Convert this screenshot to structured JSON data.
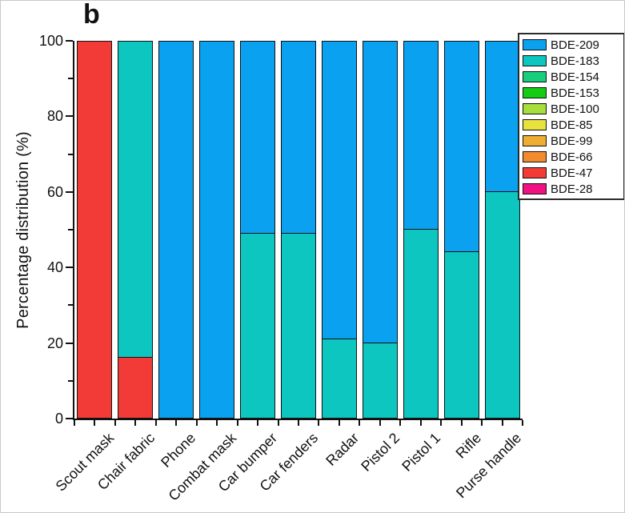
{
  "figure": {
    "panel_label": "b"
  },
  "chart_data": {
    "type": "bar",
    "stacked": true,
    "title": "b",
    "xlabel": "",
    "ylabel": "Percentage distribution (%)",
    "ylim": [
      0,
      100
    ],
    "yticks_major": [
      0,
      20,
      40,
      60,
      80,
      100
    ],
    "yticks_minor": [
      10,
      30,
      50,
      70,
      90
    ],
    "grid": false,
    "legend_position": "top-right",
    "axis_color": "#111111",
    "bar_outline_color": "#131313",
    "categories": [
      "Scout mask",
      "Chair fabric",
      "Phone",
      "Combat mask",
      "Car bumper",
      "Car fenders",
      "Radar",
      "Pistol 2",
      "Pistol 1",
      "Rifle",
      "Purse handle"
    ],
    "series": [
      {
        "name": "BDE-209",
        "color": "#0aa1f1",
        "values": [
          0,
          0,
          100,
          100,
          51,
          51,
          79,
          80,
          50,
          56,
          40
        ]
      },
      {
        "name": "BDE-183",
        "color": "#0cc6bf",
        "values": [
          0,
          84,
          0,
          0,
          49,
          49,
          21,
          20,
          50,
          44,
          60
        ]
      },
      {
        "name": "BDE-154",
        "color": "#18ce7d",
        "values": [
          0,
          0,
          0,
          0,
          0,
          0,
          0,
          0,
          0,
          0,
          0
        ]
      },
      {
        "name": "BDE-153",
        "color": "#14cc14",
        "values": [
          0,
          0,
          0,
          0,
          0,
          0,
          0,
          0,
          0,
          0,
          0
        ]
      },
      {
        "name": "BDE-100",
        "color": "#a6de3b",
        "values": [
          0,
          0,
          0,
          0,
          0,
          0,
          0,
          0,
          0,
          0,
          0
        ]
      },
      {
        "name": "BDE-85",
        "color": "#e9e23e",
        "values": [
          0,
          0,
          0,
          0,
          0,
          0,
          0,
          0,
          0,
          0,
          0
        ]
      },
      {
        "name": "BDE-99",
        "color": "#eeae31",
        "values": [
          0,
          0,
          0,
          0,
          0,
          0,
          0,
          0,
          0,
          0,
          0
        ]
      },
      {
        "name": "BDE-66",
        "color": "#f28b2e",
        "values": [
          0,
          0,
          0,
          0,
          0,
          0,
          0,
          0,
          0,
          0,
          0
        ]
      },
      {
        "name": "BDE-47",
        "color": "#f23a36",
        "values": [
          100,
          16,
          0,
          0,
          0,
          0,
          0,
          0,
          0,
          0,
          0
        ]
      },
      {
        "name": "BDE-28",
        "color": "#f01183",
        "values": [
          0,
          0,
          0,
          0,
          0,
          0,
          0,
          0,
          0,
          0,
          0
        ]
      }
    ]
  }
}
